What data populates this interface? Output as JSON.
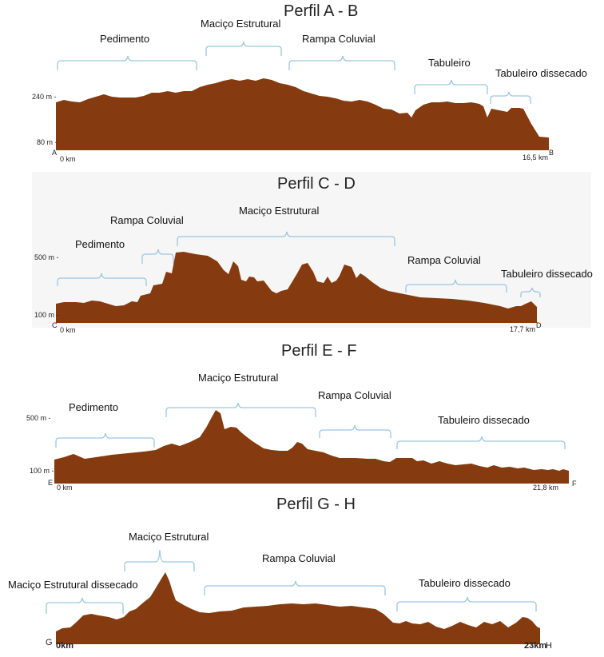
{
  "colors": {
    "terrain": "#853b0f",
    "bracket": "#9cc7e0"
  },
  "profiles": [
    {
      "title": "Perfil  A - B",
      "start_point": "A",
      "end_point": "B",
      "start_km": "0 km",
      "end_km": "16,5 km",
      "y_ticks": [
        "240 m -",
        "80 m -"
      ],
      "units": [
        "Pedimento",
        "Maciço Estrutural",
        "Rampa Coluvial",
        "Tabuleiro",
        "Tabuleiro dissecado"
      ]
    },
    {
      "title": "Perfil  C - D",
      "start_point": "C",
      "end_point": "D",
      "start_km": "0 km",
      "end_km": "17,7 km",
      "y_ticks": [
        "500 m -",
        "100 m -"
      ],
      "units": [
        "Pedimento",
        "Rampa Coluvial",
        "Maciço Estrutural",
        "Rampa Coluvial",
        "Tabuleiro dissecado"
      ]
    },
    {
      "title": "Perfil  E - F",
      "start_point": "E",
      "end_point": "F",
      "start_km": "0 km",
      "end_km": "21,8 km",
      "y_ticks": [
        "500 m -",
        "100 m -"
      ],
      "units": [
        "Pedimento",
        "Maciço Estrutural",
        "Rampa Coluvial",
        "Tabuleiro dissecado"
      ]
    },
    {
      "title": "Perfil  G - H",
      "start_point": "G",
      "end_point": "H",
      "start_km": "0km",
      "end_km": "23km",
      "units": [
        "Maciço Estrutural dissecado",
        "Maciço Estrutural",
        "Rampa Coluvial",
        "Tabuleiro dissecado"
      ]
    }
  ]
}
